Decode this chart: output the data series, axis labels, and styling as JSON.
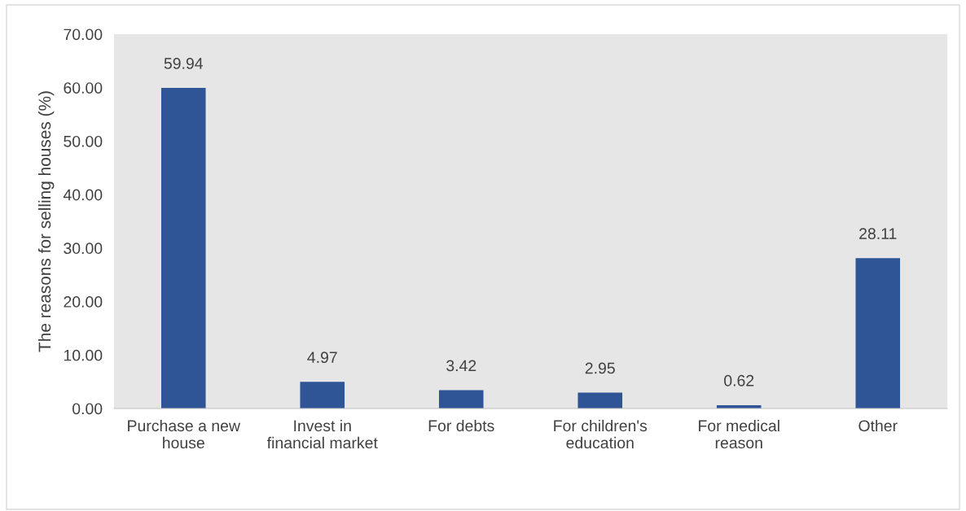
{
  "chart_data": {
    "type": "bar",
    "ylabel": "The reasons for selling houses (%)",
    "categories": [
      "Purchase a new house",
      "Invest in financial market",
      "For debts",
      "For children's education",
      "For medical reason",
      "Other"
    ],
    "values": [
      59.94,
      4.97,
      3.42,
      2.95,
      0.62,
      28.11
    ],
    "color": "#2f5597",
    "ylim": [
      0,
      70
    ],
    "yticks": [
      {
        "value": 0,
        "label": "0.00"
      },
      {
        "value": 10,
        "label": "10.00"
      },
      {
        "value": 20,
        "label": "20.00"
      },
      {
        "value": 30,
        "label": "30.00"
      },
      {
        "value": 40,
        "label": "40.00"
      },
      {
        "value": 50,
        "label": "50.00"
      },
      {
        "value": 60,
        "label": "60.00"
      },
      {
        "value": 70,
        "label": "70.00"
      }
    ],
    "grid": false,
    "data_labels": true
  }
}
